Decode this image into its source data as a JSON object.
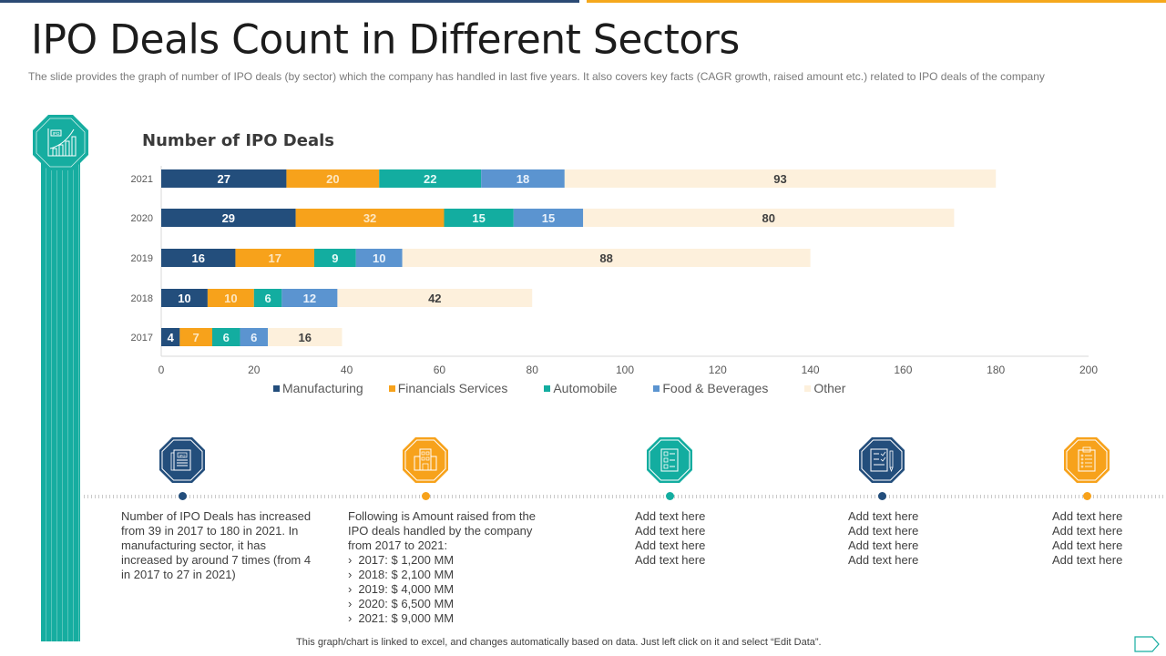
{
  "header": {
    "title": "IPO Deals Count in Different Sectors",
    "subtitle": "The slide provides  the graph  of number  of IPO deals  (by sector) which the company has handled  in last five  years. It also covers  key facts (CAGR  growth,  raised  amount  etc.) related  to IPO deals of the company"
  },
  "colors": {
    "navy": "#234e7c",
    "orange": "#f7a21b",
    "teal": "#13ada0",
    "blue": "#5b94d0",
    "cream": "#fdf0dc"
  },
  "chart_data": {
    "type": "bar",
    "orientation": "horizontal",
    "stacked": true,
    "title": "Number of IPO Deals",
    "xlabel": "",
    "ylabel": "",
    "categories": [
      "2021",
      "2020",
      "2019",
      "2018",
      "2017"
    ],
    "series": [
      {
        "name": "Manufacturing",
        "color": "#234e7c",
        "label_color": "#ffffff",
        "values": [
          27,
          29,
          16,
          10,
          4
        ]
      },
      {
        "name": "Financials Services",
        "color": "#f7a21b",
        "label_color": "#fde7c2",
        "values": [
          20,
          32,
          17,
          10,
          7
        ]
      },
      {
        "name": "Automobile",
        "color": "#13ada0",
        "label_color": "#e6fbf8",
        "values": [
          22,
          15,
          9,
          6,
          6
        ]
      },
      {
        "name": "Food & Beverages",
        "color": "#5b94d0",
        "label_color": "#eaf2fb",
        "values": [
          18,
          15,
          10,
          12,
          6
        ]
      },
      {
        "name": "Other",
        "color": "#fdf0dc",
        "label_color": "#404040",
        "values": [
          93,
          80,
          88,
          42,
          16
        ]
      }
    ],
    "xlim": [
      0,
      200
    ],
    "xticks": [
      0,
      20,
      40,
      60,
      80,
      100,
      120,
      140,
      160,
      180,
      200
    ],
    "grid": false,
    "legend_position": "bottom"
  },
  "timeline": [
    {
      "icon": "ipo-document-icon",
      "color": "#234e7c",
      "lines": [
        "Number  of IPO Deals has increased",
        "from 39 in 2017 to 180 in 2021. In",
        "manufacturing  sector, it has",
        "increased by around  7 times (from  4",
        "in 2017 to 27 in 2021)"
      ],
      "bullets": []
    },
    {
      "icon": "office-building-icon",
      "color": "#f7a21b",
      "lines": [
        "Following  is Amount raised from  the",
        "IPO deals handled by the company",
        "from 2017 to 2021:"
      ],
      "bullets": [
        "2017: $ 1,200 MM",
        "2018: $ 2,100 MM",
        "2019: $ 4,000 MM",
        "2020: $ 6,500 MM",
        "2021: $ 9,000 MM"
      ]
    },
    {
      "icon": "checklist-icon",
      "color": "#13ada0",
      "lines": [
        "Add text here",
        "Add text here",
        "Add text here",
        "Add text here"
      ],
      "bullets": []
    },
    {
      "icon": "document-pencil-icon",
      "color": "#234e7c",
      "lines": [
        "Add text here",
        "Add text here",
        "Add text here",
        "Add text here"
      ],
      "bullets": []
    },
    {
      "icon": "clipboard-list-icon",
      "color": "#f7a21b",
      "lines": [
        "Add text here",
        "Add text here",
        "Add text here",
        "Add text here"
      ],
      "bullets": []
    }
  ],
  "footer": {
    "note": "This graph/chart is linked to excel,  and changes automatically based on data. Just left click on it and select “Edit Data”."
  }
}
